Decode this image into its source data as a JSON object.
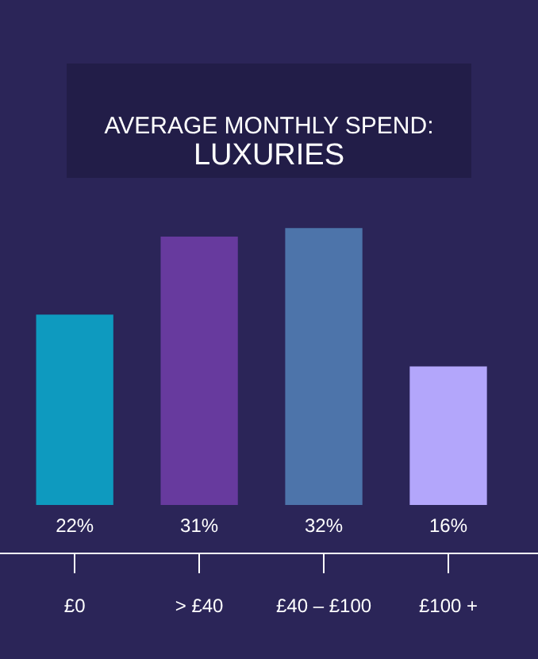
{
  "chart_data": {
    "type": "bar",
    "title": "AVERAGE MONTHLY SPEND:",
    "subtitle": "LUXURIES",
    "categories": [
      "£0",
      "> £40",
      "£40 – £100",
      "£100 +"
    ],
    "values": [
      22,
      31,
      32,
      16
    ],
    "value_labels": [
      "22%",
      "31%",
      "32%",
      "16%"
    ],
    "colors": [
      "#0e9abf",
      "#673a9e",
      "#4d74aa",
      "#b3a6fb"
    ],
    "grid": false
  }
}
